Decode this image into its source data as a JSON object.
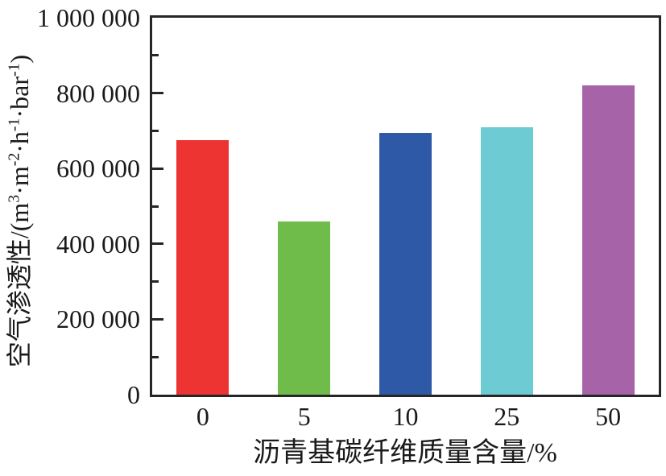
{
  "chart_data": {
    "type": "bar",
    "title": "",
    "categories": [
      "0",
      "5",
      "10",
      "25",
      "50"
    ],
    "values": [
      675000,
      460000,
      695000,
      710000,
      820000
    ],
    "bar_colors": [
      "#EE3432",
      "#6FBC4B",
      "#2E59A6",
      "#6CCBD3",
      "#A763A8"
    ],
    "xlabel": "沥青基碳纤维质量含量/%",
    "ylabel": "空气渗透性/(m³·m⁻²·h⁻¹·bar⁻¹)",
    "ylabel_parts": [
      {
        "t": "text",
        "v": "空气渗透性/(m"
      },
      {
        "t": "sup",
        "v": "3"
      },
      {
        "t": "text",
        "v": "·m"
      },
      {
        "t": "sup",
        "v": "-2"
      },
      {
        "t": "text",
        "v": "·h"
      },
      {
        "t": "sup",
        "v": "-1"
      },
      {
        "t": "text",
        "v": "·bar"
      },
      {
        "t": "sup",
        "v": "-1"
      },
      {
        "t": "text",
        "v": ")"
      }
    ],
    "ylim": [
      0,
      1000000
    ],
    "y_major_step": 200000,
    "y_minor_step": 100000,
    "y_tick_labels": [
      "0",
      "200 000",
      "400 000",
      "600 000",
      "800 000",
      "1 000 000"
    ],
    "grid": false,
    "legend": false,
    "axis_color": "#262626",
    "text_color": "#1a1a1a"
  }
}
